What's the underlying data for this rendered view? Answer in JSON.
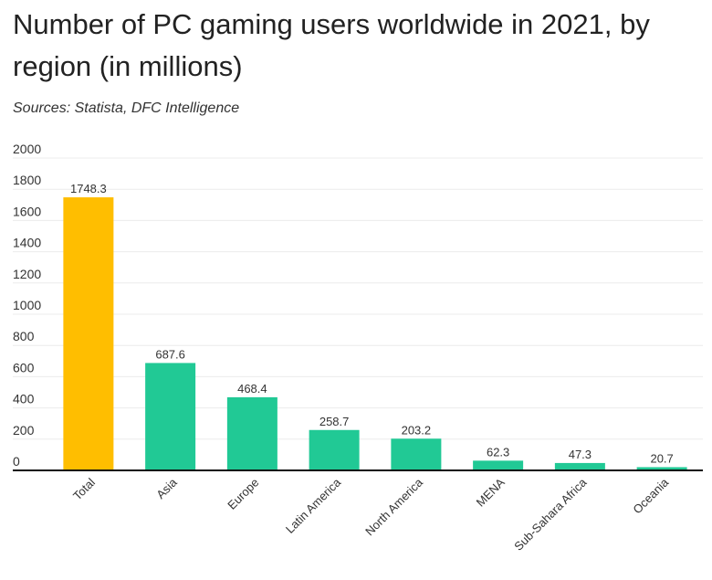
{
  "header": {
    "title": "Number of PC gaming users worldwide in 2021, by region (in millions)",
    "source": "Sources: Statista, DFC Intelligence"
  },
  "colors": {
    "highlight": "#FFBE00",
    "bar": "#21C995",
    "grid": "#ececec",
    "axis": "#111111"
  },
  "chart_data": {
    "type": "bar",
    "categories": [
      "Total",
      "Asia",
      "Europe",
      "Latin America",
      "North America",
      "MENA",
      "Sub-Sahara Africa",
      "Oceania"
    ],
    "values": [
      1748.3,
      687.6,
      468.4,
      258.7,
      203.2,
      62.3,
      47.3,
      20.7
    ],
    "value_labels": [
      "1748.3",
      "687.6",
      "468.4",
      "258.7",
      "203.2",
      "62.3",
      "47.3",
      "20.7"
    ],
    "highlight_index": 0,
    "ylim": [
      0,
      2000
    ],
    "yticks": [
      0,
      200,
      400,
      600,
      800,
      1000,
      1200,
      1400,
      1600,
      1800,
      2000
    ],
    "ytick_labels": [
      "0",
      "200",
      "400",
      "600",
      "800",
      "1000",
      "1200",
      "1400",
      "1600",
      "1800",
      "2000"
    ],
    "grid": true,
    "legend": "none"
  }
}
